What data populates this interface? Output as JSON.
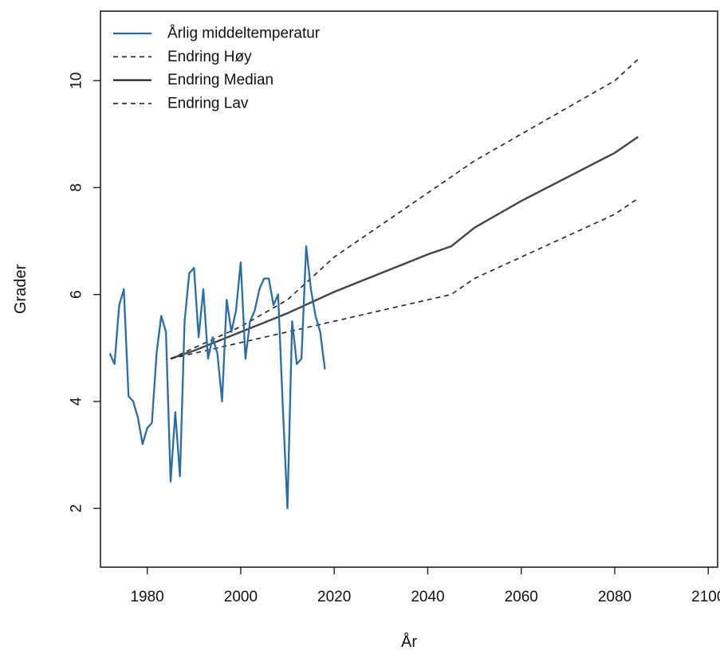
{
  "chart_data": {
    "type": "line",
    "xlabel": "År",
    "ylabel": "Grader",
    "xlim": [
      1970,
      2102
    ],
    "ylim": [
      0.9,
      11.3
    ],
    "x_ticks": [
      "1980",
      "2000",
      "2020",
      "2040",
      "2060",
      "2080",
      "2100"
    ],
    "y_ticks": [
      "2",
      "4",
      "6",
      "8",
      "10"
    ],
    "grid": false,
    "legend_position": "top-left",
    "colors": {
      "observed": "#2b6ca3",
      "projection": "#222222",
      "median": "#444444"
    },
    "legend": [
      {
        "label": "Årlig middeltemperatur",
        "style": "solid",
        "color": "#2b6ca3"
      },
      {
        "label": "Endring Høy",
        "style": "dashed",
        "color": "#222222"
      },
      {
        "label": "Endring Median",
        "style": "solid",
        "color": "#222222"
      },
      {
        "label": "Endring Lav",
        "style": "dashed",
        "color": "#222222"
      }
    ],
    "series": [
      {
        "name": "Årlig middeltemperatur",
        "style": "solid",
        "color": "#2b6ca3",
        "points": [
          [
            1972,
            4.9
          ],
          [
            1973,
            4.7
          ],
          [
            1974,
            5.8
          ],
          [
            1975,
            6.1
          ],
          [
            1976,
            4.1
          ],
          [
            1977,
            4.0
          ],
          [
            1978,
            3.7
          ],
          [
            1979,
            3.2
          ],
          [
            1980,
            3.5
          ],
          [
            1981,
            3.6
          ],
          [
            1982,
            4.9
          ],
          [
            1983,
            5.6
          ],
          [
            1984,
            5.3
          ],
          [
            1985,
            2.5
          ],
          [
            1986,
            3.8
          ],
          [
            1987,
            2.6
          ],
          [
            1988,
            5.5
          ],
          [
            1989,
            6.4
          ],
          [
            1990,
            6.5
          ],
          [
            1991,
            5.2
          ],
          [
            1992,
            6.1
          ],
          [
            1993,
            4.8
          ],
          [
            1994,
            5.2
          ],
          [
            1995,
            4.9
          ],
          [
            1996,
            4.0
          ],
          [
            1997,
            5.9
          ],
          [
            1998,
            5.3
          ],
          [
            1999,
            5.7
          ],
          [
            2000,
            6.6
          ],
          [
            2001,
            4.8
          ],
          [
            2002,
            5.5
          ],
          [
            2003,
            5.7
          ],
          [
            2004,
            6.1
          ],
          [
            2005,
            6.3
          ],
          [
            2006,
            6.3
          ],
          [
            2007,
            5.8
          ],
          [
            2008,
            6.0
          ],
          [
            2009,
            3.9
          ],
          [
            2010,
            2.0
          ],
          [
            2011,
            5.5
          ],
          [
            2012,
            4.7
          ],
          [
            2013,
            4.8
          ],
          [
            2014,
            6.9
          ],
          [
            2015,
            6.1
          ],
          [
            2016,
            5.6
          ],
          [
            2017,
            5.3
          ],
          [
            2018,
            4.6
          ]
        ]
      },
      {
        "name": "Endring Høy",
        "style": "dashed",
        "color": "#222222",
        "points": [
          [
            1985,
            4.8
          ],
          [
            1990,
            5.0
          ],
          [
            2000,
            5.4
          ],
          [
            2010,
            5.9
          ],
          [
            2020,
            6.7
          ],
          [
            2030,
            7.3
          ],
          [
            2040,
            7.9
          ],
          [
            2050,
            8.5
          ],
          [
            2060,
            9.0
          ],
          [
            2070,
            9.5
          ],
          [
            2080,
            10.0
          ],
          [
            2085,
            10.4
          ]
        ]
      },
      {
        "name": "Endring Median",
        "style": "solid",
        "color": "#444444",
        "points": [
          [
            1985,
            4.8
          ],
          [
            1990,
            4.95
          ],
          [
            2000,
            5.3
          ],
          [
            2010,
            5.65
          ],
          [
            2020,
            6.05
          ],
          [
            2030,
            6.4
          ],
          [
            2040,
            6.75
          ],
          [
            2045,
            6.9
          ],
          [
            2050,
            7.25
          ],
          [
            2060,
            7.75
          ],
          [
            2070,
            8.2
          ],
          [
            2080,
            8.65
          ],
          [
            2085,
            8.95
          ]
        ]
      },
      {
        "name": "Endring Lav",
        "style": "dashed",
        "color": "#222222",
        "points": [
          [
            1985,
            4.8
          ],
          [
            1990,
            4.9
          ],
          [
            2000,
            5.1
          ],
          [
            2010,
            5.3
          ],
          [
            2020,
            5.5
          ],
          [
            2030,
            5.7
          ],
          [
            2040,
            5.9
          ],
          [
            2045,
            6.0
          ],
          [
            2050,
            6.3
          ],
          [
            2060,
            6.7
          ],
          [
            2070,
            7.1
          ],
          [
            2080,
            7.5
          ],
          [
            2085,
            7.8
          ]
        ]
      }
    ]
  }
}
